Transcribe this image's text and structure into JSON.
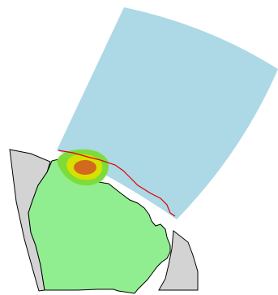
{
  "map": {
    "colors": {
      "background": "#ffffff",
      "radar_sector": "#add8e6",
      "neighbor_land": "#d3d3d3",
      "main_land": "#90ee90",
      "coastline": "#000000",
      "boundary_line": "#e00000",
      "intensity_low": "#7ddc3a",
      "intensity_medium": "#d8e000",
      "intensity_high": "#d2691e"
    },
    "layers": [
      "radar-coverage-sector",
      "neighbor-landmass",
      "main-landmass",
      "precipitation-cell",
      "boundary-line"
    ],
    "precipitation_levels": [
      "low",
      "medium",
      "high"
    ]
  }
}
